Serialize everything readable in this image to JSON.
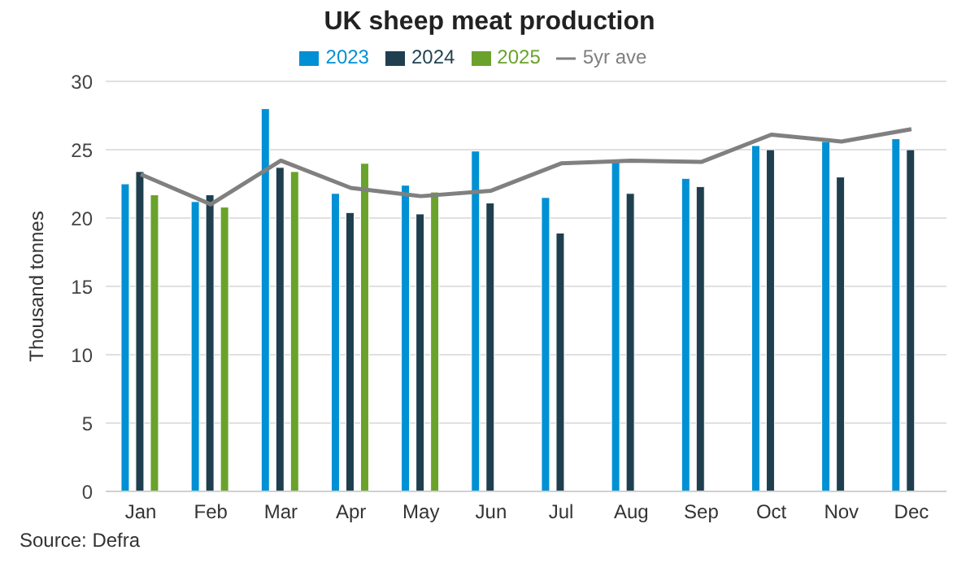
{
  "chart_data": {
    "type": "bar",
    "title": "UK sheep meat production",
    "ylabel": "Thousand tonnes",
    "categories": [
      "Jan",
      "Feb",
      "Mar",
      "Apr",
      "May",
      "Jun",
      "Jul",
      "Aug",
      "Sep",
      "Oct",
      "Nov",
      "Dec"
    ],
    "series": [
      {
        "name": "2023",
        "color": "#0090d4",
        "values": [
          22.5,
          21.2,
          28.0,
          21.8,
          22.4,
          24.9,
          21.5,
          24.1,
          22.9,
          25.3,
          25.6,
          25.8
        ]
      },
      {
        "name": "2024",
        "color": "#1f3f4f",
        "values": [
          23.4,
          21.7,
          23.7,
          20.4,
          20.3,
          21.1,
          18.9,
          21.8,
          22.3,
          25.0,
          23.0,
          25.0
        ]
      },
      {
        "name": "2025",
        "color": "#6aa22c",
        "values": [
          21.7,
          20.8,
          23.4,
          24.0,
          21.9,
          null,
          null,
          null,
          null,
          null,
          null,
          null
        ]
      },
      {
        "name": "5yr ave",
        "type": "line",
        "color": "#808080",
        "values": [
          23.2,
          21.0,
          24.2,
          22.2,
          21.6,
          22.0,
          24.0,
          24.2,
          24.1,
          26.1,
          25.6,
          26.5
        ]
      }
    ],
    "ylim": [
      0,
      30
    ],
    "yticks": [
      0,
      5,
      10,
      15,
      20,
      25,
      30
    ],
    "grid": "y",
    "legend": "top",
    "marker": "none",
    "line_style": "solid",
    "annotations": [
      "Source: Defra"
    ]
  }
}
